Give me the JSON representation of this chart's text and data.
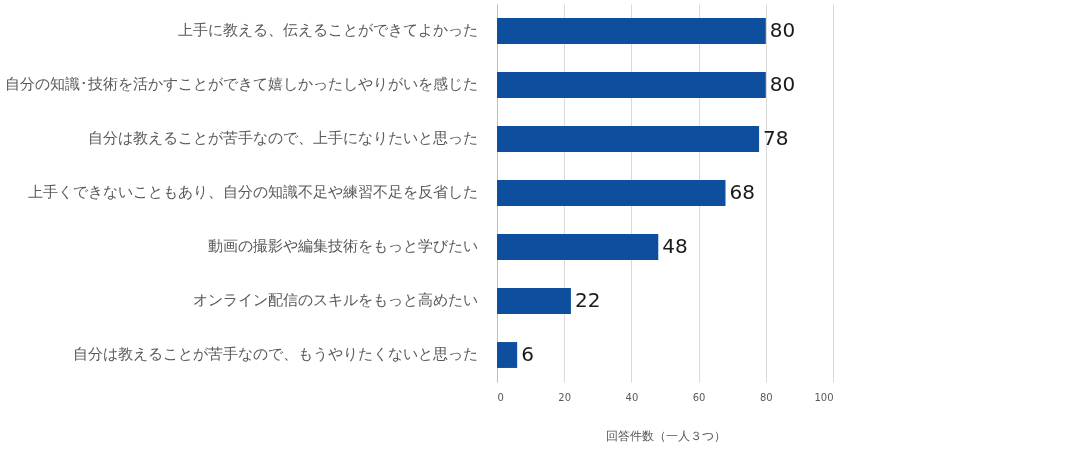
{
  "chart_data": {
    "type": "bar",
    "orientation": "horizontal",
    "categories": [
      "上手に教える、伝えることができてよかった",
      "自分の知識･技術を活かすことができて嬉しかったしやりがいを感じた",
      "自分は教えることが苦手なので、上手になりたいと思った",
      "上手くできないこともあり、自分の知識不足や練習不足を反省した",
      "動画の撮影や編集技術をもっと学びたい",
      "オンライン配信のスキルをもっと高めたい",
      "自分は教えることが苦手なので、もうやりたくないと思った"
    ],
    "values": [
      80,
      80,
      78,
      68,
      48,
      22,
      6
    ],
    "color": "#0d4f9e",
    "xlim": [
      0,
      100
    ],
    "xticks": [
      0,
      20,
      40,
      60,
      80,
      100
    ],
    "xlabel": "回答件数（一人３つ）",
    "grid": "x",
    "data_labels": true
  }
}
